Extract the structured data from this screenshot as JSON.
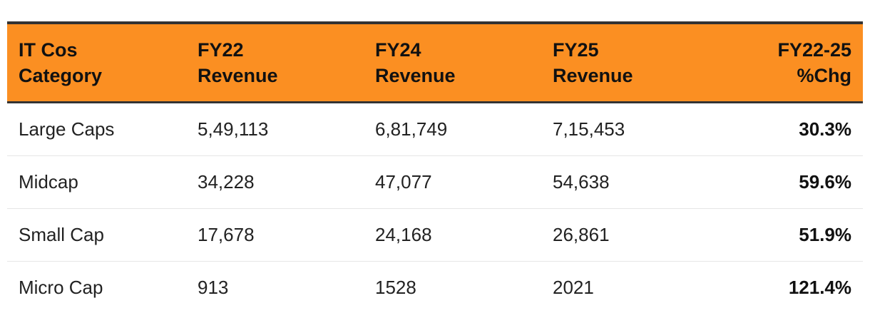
{
  "chart_data": {
    "type": "table",
    "columns": [
      "IT Cos\nCategory",
      "FY22\nRevenue",
      "FY24\nRevenue",
      "FY25\nRevenue",
      "FY22-25\n%Chg"
    ],
    "rows": [
      [
        "Large Caps",
        "5,49,113",
        "6,81,749",
        "7,15,453",
        "30.3%"
      ],
      [
        "Midcap",
        "34,228",
        "47,077",
        "54,638",
        "59.6%"
      ],
      [
        "Small Cap",
        "17,678",
        "24,168",
        "26,861",
        "51.9%"
      ],
      [
        "Micro Cap",
        "913",
        "1528",
        "2021",
        "121.4%"
      ]
    ],
    "header_color": "#fb8f22"
  }
}
